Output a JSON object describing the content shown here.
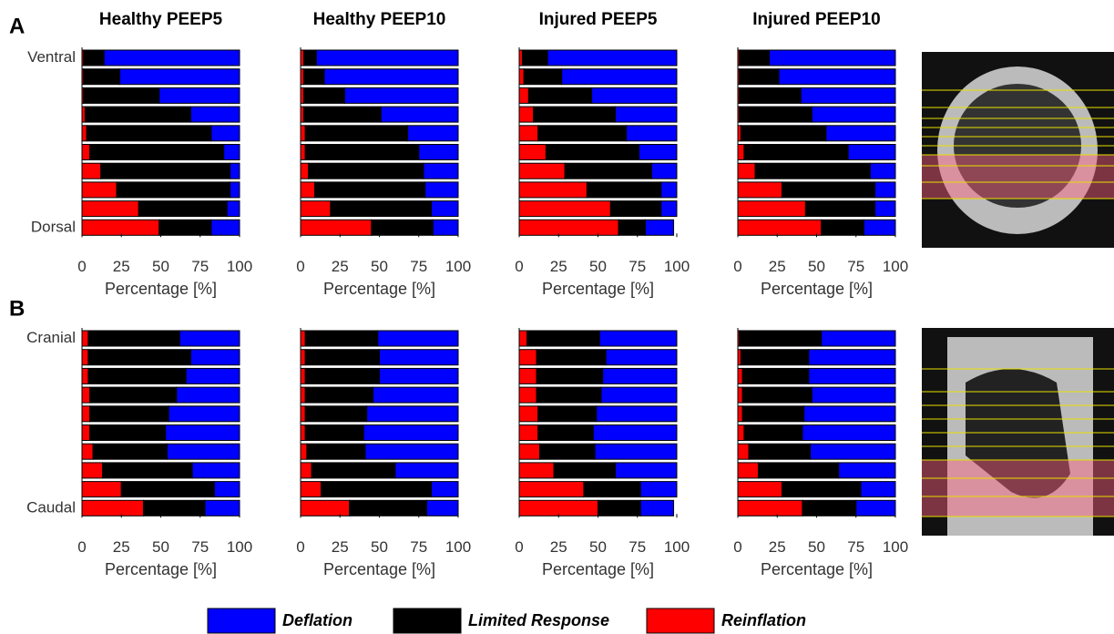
{
  "panel_labels": [
    "A",
    "B"
  ],
  "chart_data": [
    {
      "type": "stacked-barh",
      "title": "Healthy PEEP5",
      "categories": [
        "Ventral",
        null,
        null,
        null,
        null,
        null,
        null,
        null,
        null,
        "Dorsal"
      ],
      "xlabel": "Percentage [%]",
      "xlim": [
        0,
        100
      ],
      "xticks": [
        0,
        25,
        50,
        75,
        100
      ],
      "series": [
        {
          "name": "Reinflation",
          "color": "#ff0000",
          "values": [
            1,
            1,
            1,
            2,
            3,
            5,
            12,
            22,
            36,
            49
          ]
        },
        {
          "name": "Limited Response",
          "color": "#000000",
          "values": [
            13,
            23,
            48,
            67,
            79,
            85,
            82,
            72,
            56,
            33
          ]
        },
        {
          "name": "Deflation",
          "color": "#0000ff",
          "values": [
            86,
            76,
            51,
            31,
            18,
            10,
            6,
            6,
            8,
            18
          ]
        }
      ]
    },
    {
      "type": "stacked-barh",
      "title": "Healthy PEEP10",
      "xlabel": "Percentage [%]",
      "xlim": [
        0,
        100
      ],
      "xticks": [
        0,
        25,
        50,
        75,
        100
      ],
      "series": [
        {
          "name": "Reinflation",
          "color": "#ff0000",
          "values": [
            2,
            2,
            2,
            2,
            3,
            3,
            5,
            9,
            19,
            45
          ]
        },
        {
          "name": "Limited Response",
          "color": "#000000",
          "values": [
            8,
            13,
            26,
            49,
            65,
            72,
            73,
            70,
            64,
            39
          ]
        },
        {
          "name": "Deflation",
          "color": "#0000ff",
          "values": [
            90,
            85,
            72,
            49,
            32,
            25,
            22,
            21,
            17,
            16
          ]
        }
      ]
    },
    {
      "type": "stacked-barh",
      "title": "Injured PEEP5",
      "xlabel": "Percentage [%]",
      "xlim": [
        0,
        100
      ],
      "xticks": [
        0,
        25,
        50,
        75,
        100
      ],
      "series": [
        {
          "name": "Reinflation",
          "color": "#ff0000",
          "values": [
            2,
            3,
            6,
            9,
            12,
            17,
            29,
            43,
            58,
            63
          ]
        },
        {
          "name": "Limited Response",
          "color": "#000000",
          "values": [
            16,
            24,
            40,
            52,
            56,
            59,
            55,
            47,
            32,
            17
          ]
        },
        {
          "name": "Deflation",
          "color": "#0000ff",
          "values": [
            82,
            73,
            54,
            39,
            32,
            24,
            16,
            10,
            10,
            18
          ]
        }
      ]
    },
    {
      "type": "stacked-barh",
      "title": "Injured PEEP10",
      "xlabel": "Percentage [%]",
      "xlim": [
        0,
        100
      ],
      "xticks": [
        0,
        25,
        50,
        75,
        100
      ],
      "series": [
        {
          "name": "Reinflation",
          "color": "#ff0000",
          "values": [
            1,
            1,
            1,
            1,
            2,
            4,
            11,
            28,
            43,
            53
          ]
        },
        {
          "name": "Limited Response",
          "color": "#000000",
          "values": [
            19,
            25,
            39,
            46,
            54,
            66,
            73,
            59,
            44,
            27
          ]
        },
        {
          "name": "Deflation",
          "color": "#0000ff",
          "values": [
            80,
            74,
            60,
            53,
            44,
            30,
            16,
            13,
            13,
            20
          ]
        }
      ]
    },
    {
      "type": "stacked-barh",
      "categories": [
        "Cranial",
        null,
        null,
        null,
        null,
        null,
        null,
        null,
        null,
        "Caudal"
      ],
      "xlabel": "Percentage [%]",
      "xlim": [
        0,
        100
      ],
      "xticks": [
        0,
        25,
        50,
        75,
        100
      ],
      "series": [
        {
          "name": "Reinflation",
          "color": "#ff0000",
          "values": [
            4,
            4,
            4,
            5,
            5,
            5,
            7,
            13,
            25,
            39
          ]
        },
        {
          "name": "Limited Response",
          "color": "#000000",
          "values": [
            58,
            65,
            62,
            55,
            50,
            48,
            47,
            57,
            59,
            39
          ]
        },
        {
          "name": "Deflation",
          "color": "#0000ff",
          "values": [
            38,
            31,
            34,
            40,
            45,
            47,
            46,
            30,
            16,
            22
          ]
        }
      ]
    },
    {
      "type": "stacked-barh",
      "xlabel": "Percentage [%]",
      "xlim": [
        0,
        100
      ],
      "xticks": [
        0,
        25,
        50,
        75,
        100
      ],
      "series": [
        {
          "name": "Reinflation",
          "color": "#ff0000",
          "values": [
            3,
            3,
            3,
            3,
            3,
            3,
            4,
            7,
            13,
            31
          ]
        },
        {
          "name": "Limited Response",
          "color": "#000000",
          "values": [
            46,
            47,
            47,
            43,
            39,
            37,
            37,
            53,
            70,
            49
          ]
        },
        {
          "name": "Deflation",
          "color": "#0000ff",
          "values": [
            51,
            50,
            50,
            54,
            58,
            60,
            59,
            40,
            17,
            20
          ]
        }
      ]
    },
    {
      "type": "stacked-barh",
      "xlabel": "Percentage [%]",
      "xlim": [
        0,
        100
      ],
      "xticks": [
        0,
        25,
        50,
        75,
        100
      ],
      "series": [
        {
          "name": "Reinflation",
          "color": "#ff0000",
          "values": [
            5,
            11,
            11,
            11,
            12,
            12,
            13,
            22,
            41,
            50
          ]
        },
        {
          "name": "Limited Response",
          "color": "#000000",
          "values": [
            46,
            44,
            42,
            41,
            37,
            35,
            35,
            39,
            36,
            27
          ]
        },
        {
          "name": "Deflation",
          "color": "#0000ff",
          "values": [
            49,
            45,
            47,
            48,
            51,
            53,
            52,
            39,
            23,
            21
          ]
        }
      ]
    },
    {
      "type": "stacked-barh",
      "xlabel": "Percentage [%]",
      "xlim": [
        0,
        100
      ],
      "xticks": [
        0,
        25,
        50,
        75,
        100
      ],
      "series": [
        {
          "name": "Reinflation",
          "color": "#ff0000",
          "values": [
            1,
            2,
            3,
            3,
            3,
            4,
            7,
            13,
            28,
            41
          ]
        },
        {
          "name": "Limited Response",
          "color": "#000000",
          "values": [
            52,
            43,
            42,
            44,
            39,
            37,
            39,
            51,
            50,
            34
          ]
        },
        {
          "name": "Deflation",
          "color": "#0000ff",
          "values": [
            47,
            55,
            55,
            53,
            58,
            59,
            54,
            36,
            22,
            25
          ]
        }
      ]
    }
  ]
}
